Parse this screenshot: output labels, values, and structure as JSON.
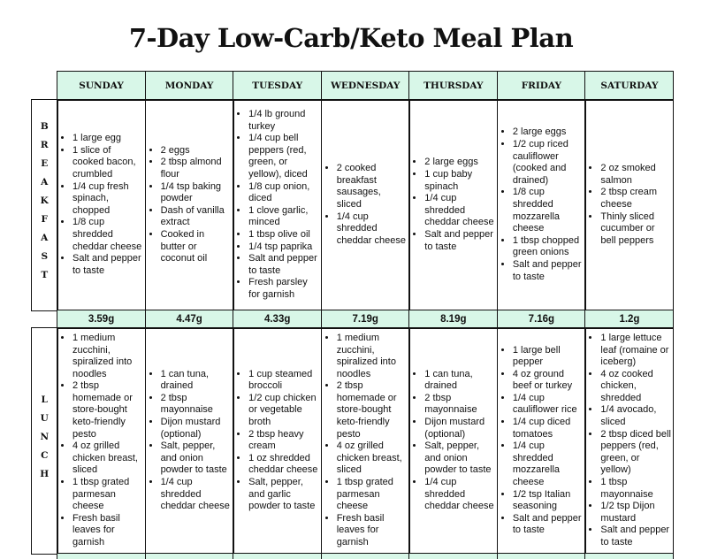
{
  "title": "7-Day Low-Carb/Keto Meal Plan",
  "days": [
    "SUNDAY",
    "MONDAY",
    "TUESDAY",
    "WEDNESDAY",
    "THURSDAY",
    "FRIDAY",
    "SATURDAY"
  ],
  "meals": [
    {
      "label": "BREAKFAST",
      "cells": [
        [
          "1 large egg",
          "1 slice of cooked bacon, crumbled",
          "1/4 cup fresh spinach, chopped",
          "1/8 cup shredded cheddar cheese",
          "Salt and pepper to taste"
        ],
        [
          "2 eggs",
          "2 tbsp almond flour",
          "1/4 tsp baking powder",
          "Dash of vanilla extract",
          "Cooked in butter or coconut oil"
        ],
        [
          "1/4 lb ground turkey",
          "1/4 cup bell peppers (red, green, or yellow), diced",
          "1/8 cup onion, diced",
          "1 clove garlic, minced",
          "1 tbsp olive oil",
          "1/4 tsp paprika",
          "Salt and pepper to taste",
          "Fresh parsley for garnish"
        ],
        [
          "2 cooked breakfast sausages, sliced",
          "1/4 cup shredded cheddar cheese"
        ],
        [
          "2 large eggs",
          "1 cup baby spinach",
          "1/4 cup shredded cheddar cheese",
          "Salt and pepper to taste"
        ],
        [
          "2 large eggs",
          "1/2 cup riced cauliflower (cooked and drained)",
          "1/8 cup shredded mozzarella cheese",
          "1 tbsp chopped green onions",
          "Salt and pepper to taste"
        ],
        [
          "2 oz smoked salmon",
          "2 tbsp cream cheese",
          "Thinly sliced cucumber or bell peppers"
        ]
      ],
      "carbs": [
        "3.59g",
        "4.47g",
        "4.33g",
        "7.19g",
        "8.19g",
        "7.16g",
        "1.2g"
      ]
    },
    {
      "label": "LUNCH",
      "cells": [
        [
          "1 medium zucchini, spiralized into noodles",
          "2 tbsp homemade or store-bought keto-friendly pesto",
          "4 oz grilled chicken breast, sliced",
          "1 tbsp grated parmesan cheese",
          "Fresh basil leaves for garnish"
        ],
        [
          "1 can tuna, drained",
          "2 tbsp mayonnaise",
          "Dijon mustard (optional)",
          "Salt, pepper, and onion powder to taste",
          "1/4 cup shredded cheddar cheese"
        ],
        [
          "1 cup steamed broccoli",
          "1/2 cup chicken or vegetable broth",
          "2 tbsp heavy cream",
          "1 oz shredded cheddar cheese",
          "Salt, pepper, and garlic powder to taste"
        ],
        [
          "1 medium zucchini, spiralized into noodles",
          "2 tbsp homemade or store-bought keto-friendly pesto",
          "4 oz grilled chicken breast, sliced",
          "1 tbsp grated parmesan cheese",
          "Fresh basil leaves for garnish"
        ],
        [
          "1 can tuna, drained",
          "2 tbsp mayonnaise",
          "Dijon mustard (optional)",
          "Salt, pepper, and onion powder to taste",
          "1/4 cup shredded cheddar cheese"
        ],
        [
          "1 large bell pepper",
          "4 oz ground beef or turkey",
          "1/4 cup cauliflower rice",
          "1/4 cup diced tomatoes",
          "1/4 cup shredded mozzarella cheese",
          "1/2 tsp Italian seasoning",
          "Salt and pepper to taste"
        ],
        [
          "1 large lettuce leaf (romaine or iceberg)",
          "4 oz cooked chicken, shredded",
          "1/4 avocado, sliced",
          "2 tbsp diced bell peppers (red, green, or yellow)",
          "1 tbsp mayonnaise",
          "1/2 tsp Dijon mustard",
          "Salt and pepper to taste"
        ]
      ]
    }
  ]
}
